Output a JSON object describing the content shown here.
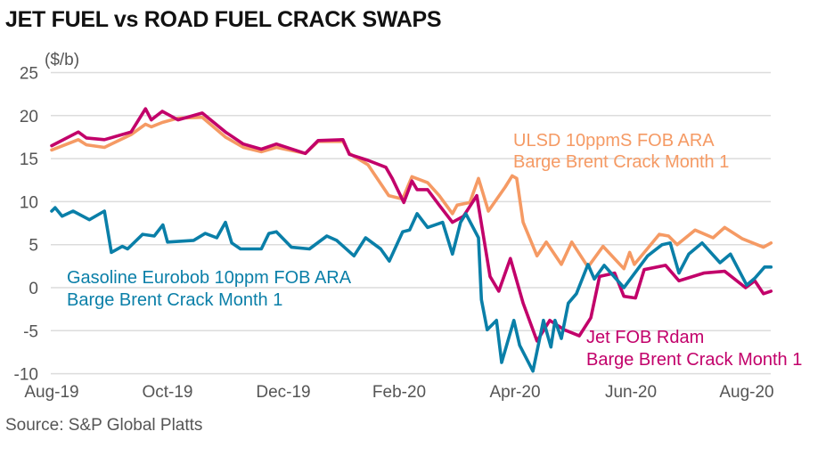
{
  "title": "JET FUEL vs ROAD FUEL CRACK SWAPS",
  "source": "Source: S&P Global Platts",
  "chart_data": {
    "type": "line",
    "title": "JET FUEL vs ROAD FUEL CRACK SWAPS",
    "ylabel": "($/b)",
    "xlabel": "",
    "ylim": [
      -10,
      25
    ],
    "yticks": [
      25,
      20,
      15,
      10,
      5,
      0,
      -5,
      -10
    ],
    "x_unit": "months since Aug-2019",
    "xlim": [
      0,
      12.42
    ],
    "xticks": [
      {
        "x": 0,
        "label": "Aug-19"
      },
      {
        "x": 2,
        "label": "Oct-19"
      },
      {
        "x": 4,
        "label": "Dec-19"
      },
      {
        "x": 6,
        "label": "Feb-20"
      },
      {
        "x": 8,
        "label": "Apr-20"
      },
      {
        "x": 10,
        "label": "Jun-20"
      },
      {
        "x": 12,
        "label": "Aug-20"
      }
    ],
    "grid": true,
    "series": [
      {
        "name": "ULSD 10ppmS FOB ARA Barge Brent Crack Month 1",
        "label_lines": [
          "ULSD 10ppmS FOB ARA",
          "Barge Brent Crack Month 1"
        ],
        "color": "#f59a64",
        "points": [
          [
            0,
            16
          ],
          [
            0.46,
            17.2
          ],
          [
            0.6,
            16.6
          ],
          [
            0.91,
            16.3
          ],
          [
            1.37,
            17.8
          ],
          [
            1.62,
            19.0
          ],
          [
            1.72,
            18.7
          ],
          [
            1.91,
            19.2
          ],
          [
            2.18,
            19.7
          ],
          [
            2.6,
            19.8
          ],
          [
            3,
            17.5
          ],
          [
            3.31,
            16.3
          ],
          [
            3.62,
            15.8
          ],
          [
            3.88,
            16.3
          ],
          [
            4.38,
            15.6
          ],
          [
            4.6,
            17.0
          ],
          [
            5.03,
            17.0
          ],
          [
            5.14,
            15.6
          ],
          [
            5.46,
            14.3
          ],
          [
            5.82,
            10.7
          ],
          [
            6.06,
            10.3
          ],
          [
            6.22,
            12.9
          ],
          [
            6.49,
            12.2
          ],
          [
            6.69,
            10.7
          ],
          [
            6.92,
            8.6
          ],
          [
            7.0,
            9.6
          ],
          [
            7.22,
            9.9
          ],
          [
            7.37,
            12.7
          ],
          [
            7.54,
            8.9
          ],
          [
            7.83,
            11.7
          ],
          [
            7.95,
            13
          ],
          [
            8.03,
            12.7
          ],
          [
            8.14,
            7.6
          ],
          [
            8.38,
            3.7
          ],
          [
            8.54,
            5.3
          ],
          [
            8.8,
            2.7
          ],
          [
            8.98,
            5.3
          ],
          [
            9.26,
            2.4
          ],
          [
            9.52,
            4.8
          ],
          [
            9.88,
            2.2
          ],
          [
            9.98,
            4.1
          ],
          [
            10.06,
            2.7
          ],
          [
            10.49,
            6.2
          ],
          [
            10.65,
            6
          ],
          [
            10.8,
            5
          ],
          [
            11.11,
            6.7
          ],
          [
            11.42,
            5.8
          ],
          [
            11.62,
            7
          ],
          [
            11.92,
            5.7
          ],
          [
            12.29,
            4.7
          ],
          [
            12.42,
            5.2
          ]
        ]
      },
      {
        "name": "Jet FOB Rdam Barge Brent Crack Month 1",
        "label_lines": [
          "Jet FOB Rdam",
          "Barge Brent Crack Month 1"
        ],
        "color": "#c2006a",
        "points": [
          [
            0,
            16.5
          ],
          [
            0.46,
            18.1
          ],
          [
            0.6,
            17.4
          ],
          [
            0.91,
            17.2
          ],
          [
            1.37,
            18.1
          ],
          [
            1.62,
            20.8
          ],
          [
            1.72,
            19.5
          ],
          [
            1.91,
            20.5
          ],
          [
            2.18,
            19.5
          ],
          [
            2.6,
            20.3
          ],
          [
            3,
            18.1
          ],
          [
            3.31,
            16.7
          ],
          [
            3.62,
            16.1
          ],
          [
            3.88,
            16.7
          ],
          [
            4.38,
            15.6
          ],
          [
            4.6,
            17.1
          ],
          [
            5.03,
            17.2
          ],
          [
            5.14,
            15.5
          ],
          [
            5.46,
            14.8
          ],
          [
            5.77,
            14
          ],
          [
            5.88,
            12.7
          ],
          [
            6.08,
            9.9
          ],
          [
            6.22,
            12.4
          ],
          [
            6.31,
            11.4
          ],
          [
            6.49,
            11.4
          ],
          [
            6.69,
            9.6
          ],
          [
            6.92,
            7.6
          ],
          [
            7.11,
            8.3
          ],
          [
            7.34,
            10.7
          ],
          [
            7.57,
            1.3
          ],
          [
            7.72,
            -0.4
          ],
          [
            7.92,
            3.4
          ],
          [
            8.14,
            -1.8
          ],
          [
            8.38,
            -6.2
          ],
          [
            8.6,
            -3.8
          ],
          [
            8.85,
            -4.9
          ],
          [
            9.11,
            -5.6
          ],
          [
            9.31,
            -3.5
          ],
          [
            9.46,
            1.3
          ],
          [
            9.72,
            1.7
          ],
          [
            9.88,
            -1
          ],
          [
            10.08,
            -1.2
          ],
          [
            10.23,
            2.1
          ],
          [
            10.6,
            2.6
          ],
          [
            10.83,
            0.8
          ],
          [
            11.26,
            1.7
          ],
          [
            11.62,
            1.9
          ],
          [
            11.98,
            0
          ],
          [
            12.14,
            0.8
          ],
          [
            12.29,
            -0.7
          ],
          [
            12.42,
            -0.4
          ]
        ]
      },
      {
        "name": "Gasoline Eurobob 10ppm FOB ARA Barge Brent Crack Month 1",
        "label_lines": [
          "Gasoline Eurobob 10ppm FOB ARA",
          "Barge Brent Crack Month 1"
        ],
        "color": "#0a7fa8",
        "points": [
          [
            0,
            8.9
          ],
          [
            0.06,
            9.3
          ],
          [
            0.18,
            8.3
          ],
          [
            0.37,
            8.9
          ],
          [
            0.65,
            7.9
          ],
          [
            0.91,
            8.9
          ],
          [
            1.03,
            4.1
          ],
          [
            1.22,
            4.8
          ],
          [
            1.31,
            4.5
          ],
          [
            1.57,
            6.2
          ],
          [
            1.77,
            6
          ],
          [
            1.92,
            7.3
          ],
          [
            2,
            5.3
          ],
          [
            2.45,
            5.5
          ],
          [
            2.65,
            6.3
          ],
          [
            2.85,
            5.8
          ],
          [
            3,
            7.6
          ],
          [
            3.11,
            5.2
          ],
          [
            3.26,
            4.5
          ],
          [
            3.62,
            4.5
          ],
          [
            3.75,
            6.3
          ],
          [
            3.88,
            6.5
          ],
          [
            4.14,
            4.7
          ],
          [
            4.45,
            4.5
          ],
          [
            4.75,
            6
          ],
          [
            4.92,
            5.5
          ],
          [
            5.22,
            3.7
          ],
          [
            5.42,
            5.8
          ],
          [
            5.68,
            4.5
          ],
          [
            5.83,
            3.1
          ],
          [
            6.06,
            6.5
          ],
          [
            6.18,
            6.7
          ],
          [
            6.31,
            8.6
          ],
          [
            6.49,
            7
          ],
          [
            6.75,
            7.6
          ],
          [
            6.92,
            3.9
          ],
          [
            7.06,
            7.6
          ],
          [
            7.15,
            8.6
          ],
          [
            7.37,
            5.8
          ],
          [
            7.42,
            -1.4
          ],
          [
            7.52,
            -4.9
          ],
          [
            7.68,
            -3.8
          ],
          [
            7.77,
            -8.7
          ],
          [
            7.98,
            -3.8
          ],
          [
            8.08,
            -6.7
          ],
          [
            8.31,
            -9.7
          ],
          [
            8.49,
            -3.8
          ],
          [
            8.62,
            -6.9
          ],
          [
            8.69,
            -3.8
          ],
          [
            8.8,
            -5.9
          ],
          [
            8.92,
            -1.8
          ],
          [
            9.06,
            -0.7
          ],
          [
            9.26,
            2.7
          ],
          [
            9.37,
            1
          ],
          [
            9.54,
            2.6
          ],
          [
            9.88,
            0
          ],
          [
            10.29,
            3.7
          ],
          [
            10.54,
            5
          ],
          [
            10.68,
            5.2
          ],
          [
            10.83,
            1.7
          ],
          [
            11,
            3.9
          ],
          [
            11.23,
            5.2
          ],
          [
            11.54,
            2.9
          ],
          [
            11.72,
            3.9
          ],
          [
            12,
            0.3
          ],
          [
            12.14,
            1.1
          ],
          [
            12.31,
            2.4
          ],
          [
            12.42,
            2.4
          ]
        ]
      }
    ]
  }
}
